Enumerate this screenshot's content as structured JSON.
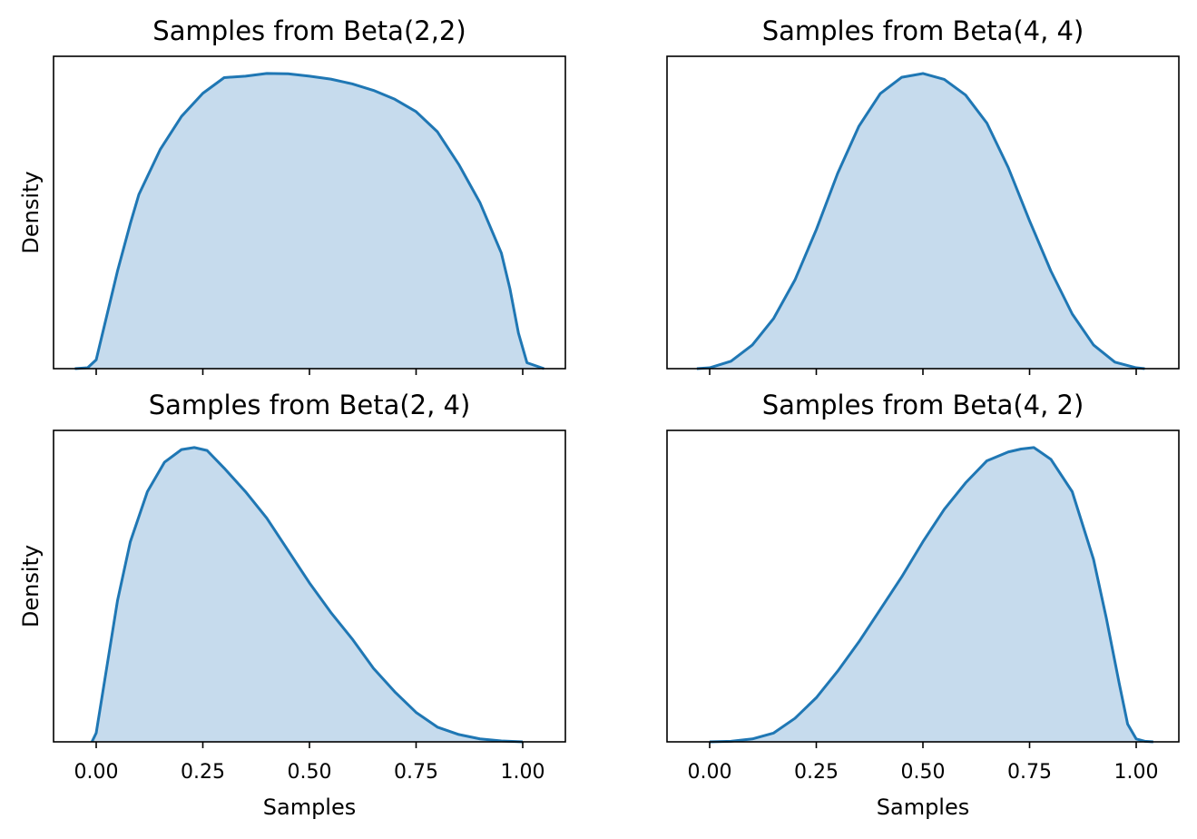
{
  "chart_data": [
    {
      "type": "area",
      "title": "Samples from Beta(2,2)",
      "xlabel": "",
      "ylabel": "Density",
      "xlim": [
        -0.1,
        1.1
      ],
      "xticks": [
        0.0,
        0.25,
        0.5,
        0.75,
        1.0
      ],
      "xtick_labels_visible": false,
      "yticks_visible": false,
      "fill_color": "#c6dbed",
      "line_color": "#1f77b4",
      "x": [
        -0.05,
        -0.02,
        0.0,
        0.02,
        0.05,
        0.08,
        0.1,
        0.15,
        0.2,
        0.25,
        0.3,
        0.35,
        0.4,
        0.45,
        0.5,
        0.55,
        0.6,
        0.65,
        0.7,
        0.75,
        0.8,
        0.85,
        0.9,
        0.95,
        0.97,
        0.99,
        1.01,
        1.05
      ],
      "y": [
        0.0,
        0.003,
        0.03,
        0.15,
        0.33,
        0.49,
        0.588,
        0.74,
        0.852,
        0.93,
        0.983,
        0.988,
        0.997,
        0.996,
        0.988,
        0.978,
        0.962,
        0.94,
        0.91,
        0.868,
        0.8,
        0.69,
        0.56,
        0.39,
        0.27,
        0.12,
        0.02,
        0.0
      ]
    },
    {
      "type": "area",
      "title": "Samples from Beta(4, 4)",
      "xlabel": "",
      "ylabel": "",
      "xlim": [
        -0.1,
        1.1
      ],
      "xticks": [
        0.0,
        0.25,
        0.5,
        0.75,
        1.0
      ],
      "xtick_labels_visible": false,
      "yticks_visible": false,
      "fill_color": "#c6dbed",
      "line_color": "#1f77b4",
      "x": [
        -0.03,
        0.0,
        0.05,
        0.1,
        0.15,
        0.2,
        0.25,
        0.3,
        0.35,
        0.4,
        0.45,
        0.5,
        0.55,
        0.6,
        0.65,
        0.7,
        0.75,
        0.8,
        0.85,
        0.9,
        0.95,
        1.0,
        1.02
      ],
      "y": [
        0.0,
        0.003,
        0.025,
        0.08,
        0.17,
        0.3,
        0.47,
        0.66,
        0.82,
        0.93,
        0.985,
        0.998,
        0.978,
        0.925,
        0.83,
        0.68,
        0.5,
        0.33,
        0.185,
        0.08,
        0.022,
        0.003,
        0.0
      ]
    },
    {
      "type": "area",
      "title": "Samples from Beta(2, 4)",
      "xlabel": "Samples",
      "ylabel": "Density",
      "xlim": [
        -0.1,
        1.1
      ],
      "xticks": [
        0.0,
        0.25,
        0.5,
        0.75,
        1.0
      ],
      "xtick_labels": [
        "0.00",
        "0.25",
        "0.50",
        "0.75",
        "1.00"
      ],
      "yticks_visible": false,
      "fill_color": "#c6dbed",
      "line_color": "#1f77b4",
      "x": [
        -0.01,
        0.0,
        0.02,
        0.05,
        0.08,
        0.12,
        0.16,
        0.2,
        0.23,
        0.26,
        0.3,
        0.35,
        0.4,
        0.45,
        0.5,
        0.55,
        0.6,
        0.65,
        0.7,
        0.75,
        0.8,
        0.85,
        0.9,
        0.95,
        1.0
      ],
      "y": [
        0.0,
        0.03,
        0.21,
        0.48,
        0.68,
        0.85,
        0.95,
        0.993,
        1.0,
        0.99,
        0.93,
        0.85,
        0.76,
        0.65,
        0.54,
        0.44,
        0.35,
        0.25,
        0.17,
        0.1,
        0.05,
        0.025,
        0.01,
        0.003,
        0.0
      ]
    },
    {
      "type": "area",
      "title": "Samples from Beta(4, 2)",
      "xlabel": "Samples",
      "ylabel": "",
      "xlim": [
        -0.1,
        1.1
      ],
      "xticks": [
        0.0,
        0.25,
        0.5,
        0.75,
        1.0
      ],
      "xtick_labels": [
        "0.00",
        "0.25",
        "0.50",
        "0.75",
        "1.00"
      ],
      "yticks_visible": false,
      "fill_color": "#c6dbed",
      "line_color": "#1f77b4",
      "x": [
        0.0,
        0.05,
        0.1,
        0.15,
        0.2,
        0.25,
        0.3,
        0.35,
        0.4,
        0.45,
        0.5,
        0.55,
        0.6,
        0.65,
        0.7,
        0.73,
        0.76,
        0.8,
        0.85,
        0.9,
        0.93,
        0.96,
        0.98,
        1.0,
        1.02,
        1.04
      ],
      "y": [
        0.0,
        0.002,
        0.01,
        0.03,
        0.08,
        0.15,
        0.24,
        0.34,
        0.45,
        0.56,
        0.68,
        0.79,
        0.88,
        0.955,
        0.985,
        0.995,
        1.0,
        0.96,
        0.85,
        0.62,
        0.42,
        0.2,
        0.06,
        0.01,
        0.002,
        0.0
      ]
    }
  ]
}
